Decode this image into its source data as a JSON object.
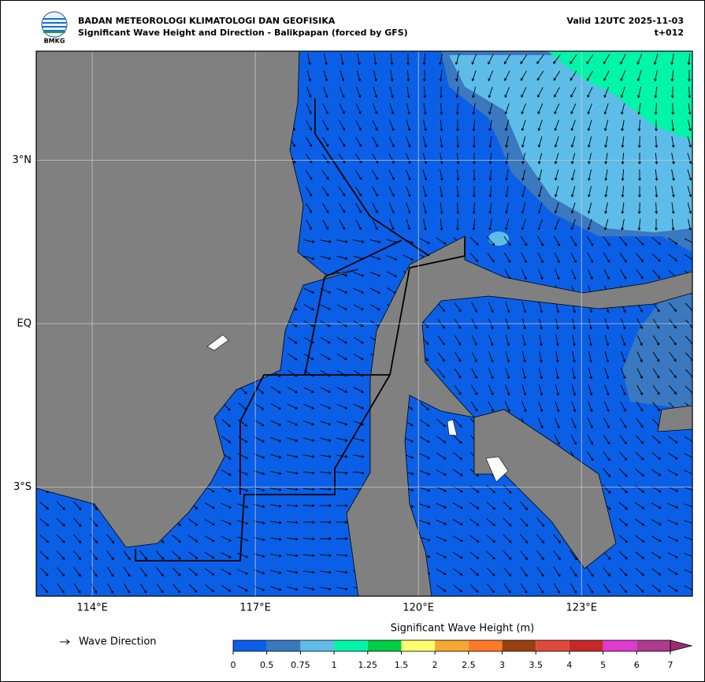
{
  "header": {
    "logo": "BMKG",
    "agency": "BADAN METEOROLOGI KLIMATOLOGI DAN GEOFISIKA",
    "title": "Significant Wave Height and Direction - Balikpapan (forced by GFS)",
    "valid": "Valid 12UTC 2025-11-03",
    "step": "t+012"
  },
  "map": {
    "xlim": [
      112.97,
      125.04
    ],
    "ylim": [
      -5,
      5
    ],
    "xticks": [
      {
        "value": 114,
        "label": "114°E"
      },
      {
        "value": 117,
        "label": "117°E"
      },
      {
        "value": 120,
        "label": "120°E"
      },
      {
        "value": 123,
        "label": "123°E"
      }
    ],
    "yticks": [
      {
        "value": 3,
        "label": "3°N"
      },
      {
        "value": 0,
        "label": "EQ"
      },
      {
        "value": -3,
        "label": "3°S"
      }
    ],
    "grid": true
  },
  "legend": {
    "label": "Wave Direction"
  },
  "colorbar": {
    "title": "Significant Wave Height (m)",
    "bounds": [
      0,
      0.5,
      0.75,
      1,
      1.25,
      1.5,
      2,
      2.5,
      3,
      3.5,
      4,
      5,
      6,
      7
    ],
    "colors": [
      "#0a5fe6",
      "#3a78c0",
      "#5dbde8",
      "#00f5a8",
      "#00cc44",
      "#ffff70",
      "#f5a830",
      "#ff7a28",
      "#9a4010",
      "#e04a3a",
      "#c82828",
      "#e03ad0",
      "#b03a90"
    ],
    "extend_color": "#9a2e70"
  }
}
